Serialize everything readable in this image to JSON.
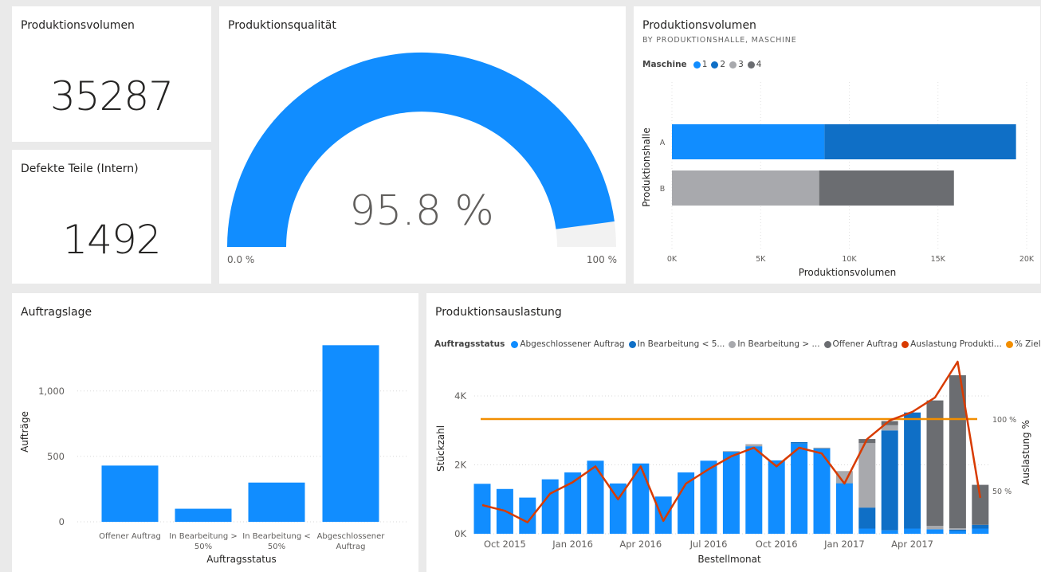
{
  "kpi_volume": {
    "title": "Produktionsvolumen",
    "value": "35287"
  },
  "kpi_defects": {
    "title": "Defekte Teile (Intern)",
    "value": "1492"
  },
  "gauge": {
    "title": "Produktionsqualität",
    "value_label": "95.8 %",
    "value": 95.8,
    "min_label": "0.0 %",
    "max_label": "100 %",
    "color": "#118dff"
  },
  "volume_chart": {
    "title": "Produktionsvolumen",
    "subtitle": "BY PRODUKTIONSHALLE, MASCHINE",
    "legend_title": "Maschine",
    "xlabel": "Produktionsvolumen",
    "ylabel": "Produktionshalle"
  },
  "orders_chart": {
    "title": "Auftragslage",
    "xlabel": "Auftragsstatus",
    "ylabel": "Aufträge"
  },
  "util_chart": {
    "title": "Produktionsauslastung",
    "legend_title": "Auftragsstatus",
    "legend": [
      {
        "label": "Abgeschlossener Auftrag",
        "color": "#118dff"
      },
      {
        "label": "In Bearbeitung < 5...",
        "color": "#0f6fc6"
      },
      {
        "label": "In Bearbeitung > ...",
        "color": "#a8a9ad"
      },
      {
        "label": "Offener Auftrag",
        "color": "#6b6d71"
      },
      {
        "label": "Auslastung Produkti...",
        "color": "#d83b01"
      },
      {
        "label": "% Ziel Produkti...",
        "color": "#f28e00"
      }
    ],
    "xlabel": "Bestellmonat",
    "ylabel": "Stückzahl",
    "y2label": "Auslastung %"
  },
  "chart_data": [
    {
      "type": "bar",
      "orientation": "horizontal",
      "stacked": true,
      "categories": [
        "A",
        "B"
      ],
      "series": [
        {
          "name": "1",
          "values": [
            8600,
            0
          ],
          "color": "#118dff"
        },
        {
          "name": "2",
          "values": [
            10800,
            0
          ],
          "color": "#0f6fc6"
        },
        {
          "name": "3",
          "values": [
            0,
            8300
          ],
          "color": "#a8a9ad"
        },
        {
          "name": "4",
          "values": [
            0,
            7600
          ],
          "color": "#6b6d71"
        }
      ],
      "xticks": [
        "0K",
        "5K",
        "10K",
        "15K",
        "20K"
      ],
      "xlim": [
        0,
        20000
      ],
      "xlabel": "Produktionsvolumen",
      "ylabel": "Produktionshalle"
    },
    {
      "type": "bar",
      "categories": [
        "Offener Auftrag",
        "In Bearbeitung > 50%",
        "In Bearbeitung < 50%",
        "Abgeschlossener Auftrag"
      ],
      "values": [
        430,
        100,
        300,
        1350
      ],
      "yticks": [
        "0",
        "500",
        "1,000"
      ],
      "ylim": [
        0,
        1400
      ],
      "xlabel": "Auftragsstatus",
      "ylabel": "Aufträge",
      "color": "#118dff"
    },
    {
      "type": "bar+line",
      "stacked": true,
      "x_ticks": [
        "Oct 2015",
        "Jan 2016",
        "Apr 2016",
        "Jul 2016",
        "Oct 2016",
        "Jan 2017",
        "Apr 2017"
      ],
      "yticks": [
        "0K",
        "2K",
        "4K"
      ],
      "ylim": [
        0,
        4600
      ],
      "y2ticks": [
        "50 %",
        "100 %"
      ],
      "y2lim": [
        10,
        135
      ],
      "series": [
        {
          "name": "Abgeschlossener Auftrag",
          "color": "#118dff",
          "values": [
            1450,
            1300,
            1050,
            1580,
            1780,
            2120,
            1460,
            2040,
            1080,
            1780,
            2120,
            2380,
            2540,
            2130,
            2620,
            2460,
            1460,
            150,
            100,
            150,
            130,
            80,
            150
          ]
        },
        {
          "name": "In Bearbeitung < 50%",
          "color": "#0f6fc6",
          "values": [
            0,
            0,
            0,
            0,
            0,
            0,
            0,
            0,
            0,
            0,
            0,
            0,
            0,
            0,
            40,
            20,
            10,
            610,
            2900,
            3370,
            0,
            40,
            110
          ]
        },
        {
          "name": "In Bearbeitung > 50%",
          "color": "#a8a9ad",
          "values": [
            0,
            0,
            0,
            0,
            0,
            0,
            0,
            0,
            0,
            0,
            0,
            20,
            60,
            0,
            0,
            20,
            350,
            1870,
            150,
            0,
            100,
            40,
            0
          ]
        },
        {
          "name": "Offener Auftrag",
          "color": "#6b6d71",
          "values": [
            0,
            0,
            0,
            0,
            0,
            0,
            0,
            0,
            0,
            0,
            0,
            0,
            0,
            0,
            0,
            0,
            0,
            120,
            120,
            0,
            3640,
            4440,
            1160
          ]
        },
        {
          "name": "Auslastung Produktion %",
          "color": "#d83b01",
          "type": "line",
          "values": [
            40,
            36,
            28,
            48,
            56,
            67,
            44,
            67,
            29,
            55,
            65,
            74,
            80,
            67,
            80,
            76,
            55,
            86,
            99,
            105,
            115,
            140,
            45
          ]
        },
        {
          "name": "% Ziel Produktion",
          "color": "#f28e00",
          "type": "line",
          "values": [
            100,
            100,
            100,
            100,
            100,
            100,
            100,
            100,
            100,
            100,
            100,
            100,
            100,
            100,
            100,
            100,
            100,
            100,
            100,
            100,
            100,
            100,
            100
          ]
        }
      ],
      "xlabel": "Bestellmonat",
      "ylabel": "Stückzahl",
      "y2label": "Auslastung %"
    }
  ]
}
